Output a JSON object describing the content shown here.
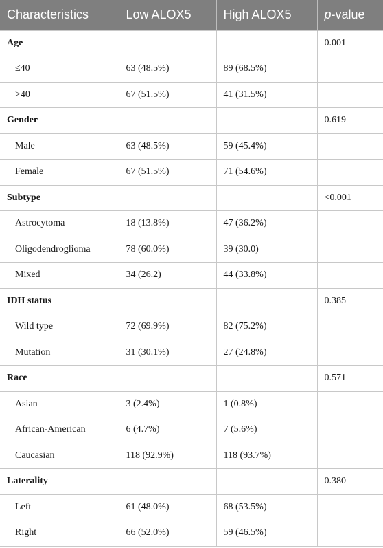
{
  "table": {
    "headers": {
      "characteristics": "Characteristics",
      "low": "Low ALOX5",
      "high": "High ALOX5",
      "p_italic": "p",
      "p_rest": "-value"
    },
    "rows": [
      {
        "label": "Age",
        "low": "",
        "high": "",
        "p": "0.001"
      },
      {
        "label": "≤40",
        "low": "63 (48.5%)",
        "high": "89 (68.5%)",
        "p": ""
      },
      {
        "label": ">40",
        "low": "67 (51.5%)",
        "high": "41 (31.5%)",
        "p": ""
      },
      {
        "label": "Gender",
        "low": "",
        "high": "",
        "p": "0.619"
      },
      {
        "label": "Male",
        "low": "63 (48.5%)",
        "high": "59 (45.4%)",
        "p": ""
      },
      {
        "label": "Female",
        "low": "67 (51.5%)",
        "high": "71 (54.6%)",
        "p": ""
      },
      {
        "label": "Subtype",
        "low": "",
        "high": "",
        "p": "<0.001"
      },
      {
        "label": "Astrocytoma",
        "low": "18 (13.8%)",
        "high": "47 (36.2%)",
        "p": ""
      },
      {
        "label": "Oligodendroglioma",
        "low": "78 (60.0%)",
        "high": "39 (30.0)",
        "p": ""
      },
      {
        "label": "Mixed",
        "low": "34 (26.2)",
        "high": "44 (33.8%)",
        "p": ""
      },
      {
        "label": "IDH status",
        "low": "",
        "high": "",
        "p": "0.385"
      },
      {
        "label": "Wild type",
        "low": "72 (69.9%)",
        "high": "82 (75.2%)",
        "p": ""
      },
      {
        "label": "Mutation",
        "low": "31 (30.1%)",
        "high": "27 (24.8%)",
        "p": ""
      },
      {
        "label": "Race",
        "low": "",
        "high": "",
        "p": "0.571"
      },
      {
        "label": "Asian",
        "low": "3 (2.4%)",
        "high": "1 (0.8%)",
        "p": ""
      },
      {
        "label": "African-American",
        "low": "6 (4.7%)",
        "high": "7 (5.6%)",
        "p": ""
      },
      {
        "label": "Caucasian",
        "low": "118 (92.9%)",
        "high": "118 (93.7%)",
        "p": ""
      },
      {
        "label": "Laterality",
        "low": "",
        "high": "",
        "p": "0.380"
      },
      {
        "label": "Left",
        "low": "61 (48.0%)",
        "high": "68 (53.5%)",
        "p": ""
      },
      {
        "label": "Right",
        "low": "66 (52.0%)",
        "high": "59 (46.5%)",
        "p": ""
      }
    ]
  }
}
